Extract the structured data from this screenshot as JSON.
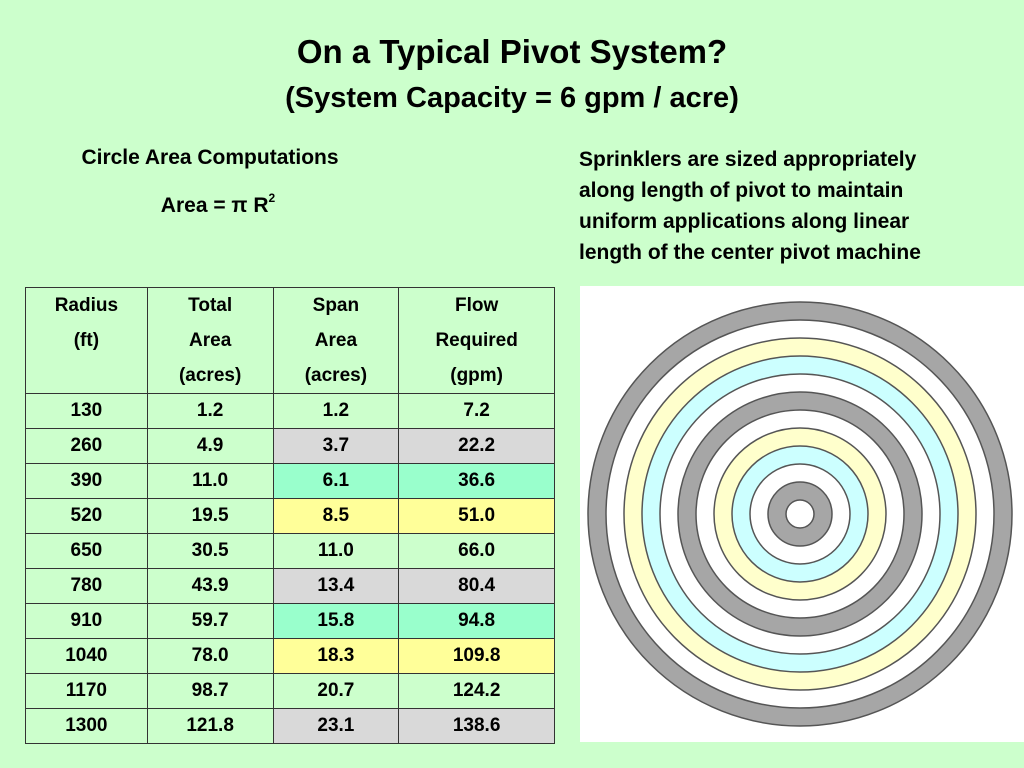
{
  "title": "On a Typical Pivot System?",
  "subtitle": "(System Capacity = 6 gpm / acre)",
  "circle_heading": "Circle Area Computations",
  "formula": {
    "text": "Area = π R",
    "exponent": "2"
  },
  "notes": [
    "Sprinklers are sized appropriately",
    "along length of pivot to maintain",
    "uniform applications along linear",
    "length of the  center pivot machine"
  ],
  "table": {
    "headers": [
      [
        "Radius",
        "(ft)"
      ],
      [
        "Total",
        "Area",
        "(acres)"
      ],
      [
        "Span",
        "Area",
        "(acres)"
      ],
      [
        "Flow",
        "Required",
        "(gpm)"
      ]
    ],
    "rows": [
      {
        "radius": "130",
        "total": "1.2",
        "span": "1.2",
        "flow": "7.2",
        "highlight": "none"
      },
      {
        "radius": "260",
        "total": "4.9",
        "span": "3.7",
        "flow": "22.2",
        "highlight": "grey"
      },
      {
        "radius": "390",
        "total": "11.0",
        "span": "6.1",
        "flow": "36.6",
        "highlight": "aqua"
      },
      {
        "radius": "520",
        "total": "19.5",
        "span": "8.5",
        "flow": "51.0",
        "highlight": "yellow"
      },
      {
        "radius": "650",
        "total": "30.5",
        "span": "11.0",
        "flow": "66.0",
        "highlight": "none"
      },
      {
        "radius": "780",
        "total": "43.9",
        "span": "13.4",
        "flow": "80.4",
        "highlight": "grey"
      },
      {
        "radius": "910",
        "total": "59.7",
        "span": "15.8",
        "flow": "94.8",
        "highlight": "aqua"
      },
      {
        "radius": "1040",
        "total": "78.0",
        "span": "18.3",
        "flow": "109.8",
        "highlight": "yellow"
      },
      {
        "radius": "1170",
        "total": "98.7",
        "span": "20.7",
        "flow": "124.2",
        "highlight": "none"
      },
      {
        "radius": "1300",
        "total": "121.8",
        "span": "23.1",
        "flow": "138.6",
        "highlight": "grey"
      }
    ]
  },
  "rings": {
    "colors_outer_to_inner": [
      "grey",
      "white",
      "yellow",
      "aqua",
      "white",
      "grey",
      "white",
      "yellow",
      "aqua",
      "white",
      "grey",
      "white"
    ]
  },
  "colors": {
    "background": "#ccffcc",
    "grey": "#a6a6a6",
    "aqua": "#ccffff",
    "yellow": "#ffffcc",
    "white": "#ffffff",
    "row_grey": "#d9d9d9",
    "row_aqua": "#99ffcc",
    "row_yellow": "#ffff99"
  }
}
